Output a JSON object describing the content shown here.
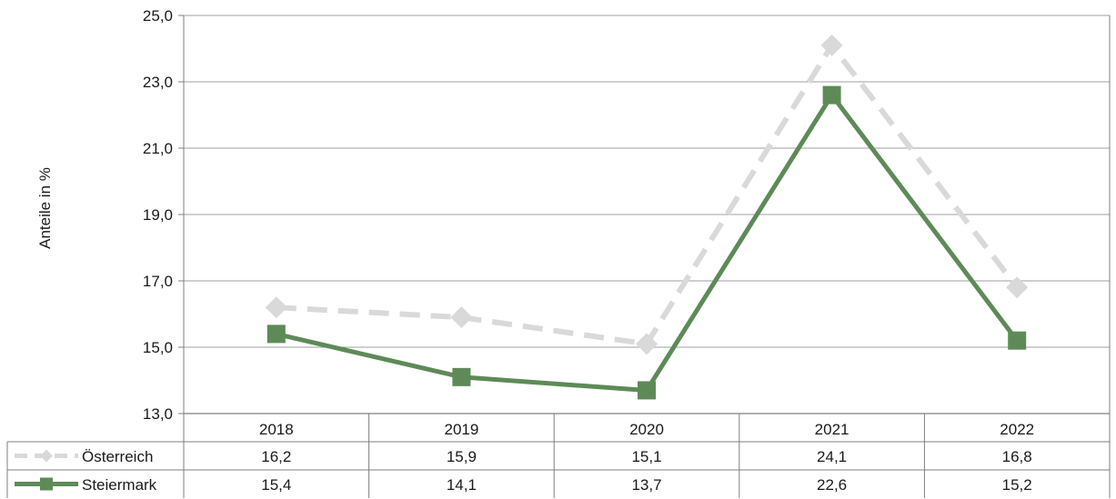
{
  "chart_data": {
    "type": "line",
    "title": "",
    "ylabel": "Anteile in %",
    "xlabel": "",
    "ylim": [
      13.0,
      25.0
    ],
    "yticks": [
      "13,0",
      "15,0",
      "17,0",
      "19,0",
      "21,0",
      "23,0",
      "25,0"
    ],
    "categories": [
      "2018",
      "2019",
      "2020",
      "2021",
      "2022"
    ],
    "grid": "horizontal",
    "legend": "data-table-rows",
    "series": [
      {
        "name": "Österreich",
        "values": [
          16.2,
          15.9,
          15.1,
          24.1,
          16.8
        ],
        "labels": [
          "16,2",
          "15,9",
          "15,1",
          "24,1",
          "16,8"
        ],
        "color": "#d9d9d9",
        "line_style": "dashed",
        "marker": "diamond"
      },
      {
        "name": "Steiermark",
        "values": [
          15.4,
          14.1,
          13.7,
          22.6,
          15.2
        ],
        "labels": [
          "15,4",
          "14,1",
          "13,7",
          "22,6",
          "15,2"
        ],
        "color": "#5e8a58",
        "line_style": "solid",
        "marker": "square"
      }
    ]
  }
}
